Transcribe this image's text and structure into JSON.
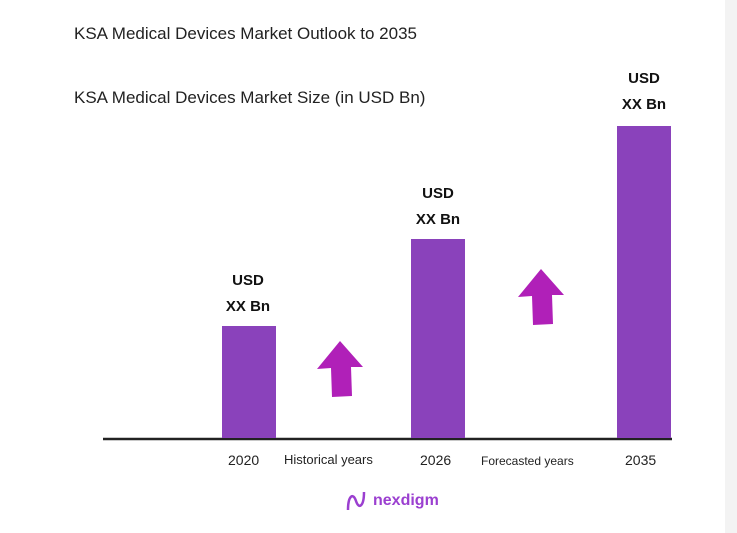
{
  "chart_data": {
    "type": "bar",
    "title": "KSA Medical Devices Market Outlook to 2035",
    "subtitle": "KSA Medical Devices Market Size (in USD Bn)",
    "categories": [
      "2020",
      "2026",
      "2035"
    ],
    "data_labels": [
      [
        "USD",
        "XX Bn"
      ],
      [
        "USD",
        "XX Bn"
      ],
      [
        "USD",
        "XX Bn"
      ]
    ],
    "values": [
      null,
      null,
      null
    ],
    "period_labels": [
      "Historical years",
      "Forecasted years"
    ],
    "bar_color": "#8a42bb",
    "arrow_color": "#b020b8",
    "grid": false,
    "xlabel": "",
    "ylabel": ""
  },
  "logo": {
    "text": "nexdigm",
    "color": "#9b3fd0"
  }
}
